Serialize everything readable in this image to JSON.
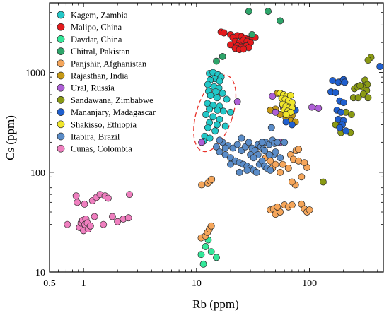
{
  "chart_data": {
    "type": "scatter",
    "xlabel": "Rb (ppm)",
    "ylabel": "Cs (ppm)",
    "xscale": "log",
    "yscale": "log",
    "xlim": [
      0.5,
      450
    ],
    "ylim": [
      10,
      5000
    ],
    "x_ticks": [
      {
        "value": 0.5,
        "label": "0.5"
      },
      {
        "value": 1,
        "label": "1"
      },
      {
        "value": 10,
        "label": "10"
      },
      {
        "value": 100,
        "label": "100"
      }
    ],
    "y_ticks": [
      {
        "value": 10,
        "label": "10"
      },
      {
        "value": 100,
        "label": "100"
      },
      {
        "value": 1000,
        "label": "1000"
      }
    ],
    "legend_position": "top-left",
    "grid": false,
    "annotations": [
      {
        "type": "dashed-ellipse",
        "color": "#e8322a",
        "center": [
          14.5,
          390
        ],
        "rx_range": [
          10.8,
          22.5
        ],
        "ry_range": [
          175,
          1100
        ]
      }
    ],
    "series": [
      {
        "name": "Kagem, Zambia",
        "color": "#22c8c8",
        "points": [
          [
            13,
            980
          ],
          [
            14,
            1000
          ],
          [
            15.5,
            950
          ],
          [
            16.5,
            900
          ],
          [
            14.5,
            870
          ],
          [
            13.2,
            840
          ],
          [
            16,
            820
          ],
          [
            12.6,
            760
          ],
          [
            14.3,
            720
          ],
          [
            15.8,
            700
          ],
          [
            12.8,
            650
          ],
          [
            14.8,
            640
          ],
          [
            17,
            620
          ],
          [
            13.3,
            590
          ],
          [
            15.2,
            560
          ],
          [
            18.5,
            540
          ],
          [
            12.5,
            490
          ],
          [
            14,
            470
          ],
          [
            16,
            460
          ],
          [
            13,
            430
          ],
          [
            15.3,
            420
          ],
          [
            17.3,
            410
          ],
          [
            20,
            400
          ],
          [
            12.1,
            380
          ],
          [
            14,
            360
          ],
          [
            16,
            340
          ],
          [
            13,
            315
          ],
          [
            15.2,
            300
          ],
          [
            18,
            290
          ],
          [
            12.6,
            280
          ],
          [
            14.6,
            260
          ],
          [
            11.8,
            230
          ],
          [
            13.1,
            220
          ],
          [
            11.5,
            205
          ]
        ]
      },
      {
        "name": "Malipo, China",
        "color": "#e41a1c",
        "points": [
          [
            16.5,
            2550
          ],
          [
            17.5,
            2500
          ],
          [
            20,
            2400
          ],
          [
            23,
            2350
          ],
          [
            21,
            2250
          ],
          [
            25,
            2300
          ],
          [
            27,
            2200
          ],
          [
            29,
            2150
          ],
          [
            31,
            2300
          ],
          [
            33,
            2250
          ],
          [
            22,
            2050
          ],
          [
            24,
            2000
          ],
          [
            26,
            2100
          ],
          [
            28,
            2050
          ],
          [
            30,
            2000
          ],
          [
            20,
            1900
          ],
          [
            23,
            1850
          ],
          [
            25,
            1800
          ],
          [
            27.5,
            1850
          ],
          [
            29,
            1780
          ],
          [
            22,
            1750
          ],
          [
            24,
            1700
          ],
          [
            26,
            1720
          ]
        ]
      },
      {
        "name": "Davdar, China",
        "color": "#33e89a",
        "points": [
          [
            11,
            15
          ],
          [
            11.5,
            12
          ],
          [
            12,
            18
          ],
          [
            13.5,
            16
          ],
          [
            15,
            14
          ],
          [
            12.7,
            21
          ]
        ]
      },
      {
        "name": "Chitral, Pakistan",
        "color": "#2ea56a",
        "points": [
          [
            29,
            4100
          ],
          [
            43,
            4100
          ],
          [
            55,
            3300
          ],
          [
            31,
            2400
          ],
          [
            17,
            1450
          ],
          [
            15,
            1300
          ]
        ]
      },
      {
        "name": "Panjshir, Afghanistan",
        "color": "#f5a65b",
        "points": [
          [
            11.1,
            75
          ],
          [
            12.6,
            78
          ],
          [
            13.2,
            82
          ],
          [
            13.6,
            85
          ],
          [
            11,
            22
          ],
          [
            12,
            23
          ],
          [
            12.5,
            25
          ],
          [
            13,
            27
          ],
          [
            13.5,
            29
          ],
          [
            41,
            140
          ],
          [
            45,
            130
          ],
          [
            47,
            110
          ],
          [
            50,
            120
          ],
          [
            55,
            100
          ],
          [
            58,
            120
          ],
          [
            65,
            110
          ],
          [
            68,
            150
          ],
          [
            72,
            135
          ],
          [
            76,
            165
          ],
          [
            80,
            170
          ],
          [
            95,
            112
          ],
          [
            80,
            130
          ],
          [
            90,
            125
          ],
          [
            85,
            90
          ],
          [
            75,
            75
          ],
          [
            70,
            80
          ],
          [
            45,
            42
          ],
          [
            48,
            43
          ],
          [
            50,
            38
          ],
          [
            55,
            40
          ],
          [
            60,
            47
          ],
          [
            65,
            45
          ],
          [
            70,
            47
          ],
          [
            85,
            48
          ],
          [
            90,
            43
          ],
          [
            95,
            40
          ],
          [
            100,
            42
          ],
          [
            52,
            45
          ]
        ]
      },
      {
        "name": "Rajasthan, India",
        "color": "#c79a16",
        "points": [
          [
            52,
            620
          ],
          [
            57,
            560
          ],
          [
            65,
            500
          ],
          [
            70,
            460
          ],
          [
            60,
            430
          ],
          [
            64,
            400
          ],
          [
            55,
            380
          ],
          [
            70,
            370
          ],
          [
            62,
            350
          ],
          [
            68,
            330
          ],
          [
            75,
            320
          ],
          [
            50,
            430
          ],
          [
            45,
            420
          ],
          [
            58,
            470
          ]
        ]
      },
      {
        "name": "Ural, Russia",
        "color": "#ae5fd6",
        "points": [
          [
            23,
            510
          ],
          [
            50,
            400
          ],
          [
            59,
            440
          ],
          [
            105,
            450
          ],
          [
            120,
            440
          ],
          [
            47,
            580
          ],
          [
            55,
            200
          ],
          [
            11.1,
            200
          ]
        ]
      },
      {
        "name": "Sandawana, Zimbabwe",
        "color": "#8a9a14",
        "points": [
          [
            132,
            80
          ],
          [
            170,
            300
          ],
          [
            190,
            250
          ],
          [
            210,
            400
          ],
          [
            235,
            380
          ],
          [
            245,
            560
          ],
          [
            270,
            560
          ],
          [
            310,
            840
          ],
          [
            325,
            760
          ],
          [
            350,
            1420
          ],
          [
            330,
            1330
          ],
          [
            295,
            720
          ],
          [
            320,
            660
          ],
          [
            300,
            610
          ],
          [
            330,
            560
          ],
          [
            230,
            250
          ],
          [
            250,
            690
          ],
          [
            265,
            720
          ],
          [
            280,
            740
          ]
        ]
      },
      {
        "name": "Mananjary, Madagascar",
        "color": "#1f5fcf",
        "points": [
          [
            160,
            830
          ],
          [
            180,
            800
          ],
          [
            195,
            820
          ],
          [
            200,
            850
          ],
          [
            205,
            800
          ],
          [
            155,
            640
          ],
          [
            170,
            630
          ],
          [
            185,
            520
          ],
          [
            200,
            500
          ],
          [
            175,
            420
          ],
          [
            190,
            400
          ],
          [
            180,
            340
          ],
          [
            200,
            330
          ],
          [
            195,
            300
          ],
          [
            185,
            280
          ],
          [
            210,
            260
          ],
          [
            420,
            1150
          ],
          [
            62,
            320
          ],
          [
            70,
            300
          ],
          [
            75,
            420
          ]
        ]
      },
      {
        "name": "Shakisso, Ethiopia",
        "color": "#f0e62a",
        "points": [
          [
            55,
            620
          ],
          [
            59,
            600
          ],
          [
            63,
            580
          ],
          [
            68,
            590
          ],
          [
            57,
            550
          ],
          [
            61,
            540
          ],
          [
            65,
            520
          ],
          [
            70,
            500
          ],
          [
            58,
            480
          ],
          [
            62,
            460
          ],
          [
            66,
            450
          ],
          [
            70,
            440
          ],
          [
            60,
            420
          ],
          [
            64,
            410
          ],
          [
            68,
            400
          ],
          [
            62,
            380
          ]
        ]
      },
      {
        "name": "Itabira, Brazil",
        "color": "#5a8cc8",
        "points": [
          [
            17,
            200
          ],
          [
            19,
            185
          ],
          [
            21,
            175
          ],
          [
            23,
            190
          ],
          [
            25,
            165
          ],
          [
            27,
            180
          ],
          [
            29,
            200
          ],
          [
            31,
            175
          ],
          [
            33,
            165
          ],
          [
            35,
            190
          ],
          [
            37,
            180
          ],
          [
            39,
            170
          ],
          [
            41,
            200
          ],
          [
            44,
            190
          ],
          [
            47,
            210
          ],
          [
            49,
            195
          ],
          [
            52,
            200
          ],
          [
            15,
            180
          ],
          [
            16,
            160
          ],
          [
            18,
            150
          ],
          [
            20,
            140
          ],
          [
            22,
            130
          ],
          [
            24,
            125
          ],
          [
            26,
            120
          ],
          [
            28,
            115
          ],
          [
            30,
            110
          ],
          [
            32,
            105
          ],
          [
            34,
            100
          ],
          [
            36,
            120
          ],
          [
            38,
            130
          ],
          [
            40,
            115
          ],
          [
            42,
            110
          ],
          [
            45,
            105
          ],
          [
            48,
            150
          ],
          [
            50,
            160
          ],
          [
            24,
            100
          ],
          [
            28,
            105
          ],
          [
            20,
            120
          ],
          [
            18,
            175
          ],
          [
            30,
            150
          ],
          [
            35,
            150
          ],
          [
            44,
            150
          ],
          [
            55,
            140
          ],
          [
            60,
            200
          ],
          [
            46,
            280
          ],
          [
            16,
            210
          ],
          [
            38,
            200
          ],
          [
            25,
            220
          ],
          [
            32,
            140
          ],
          [
            40,
            165
          ]
        ]
      },
      {
        "name": "Cunas, Colombia",
        "color": "#ef7fbf",
        "points": [
          [
            0.86,
            58
          ],
          [
            0.88,
            50
          ],
          [
            1.02,
            48
          ],
          [
            1.2,
            52
          ],
          [
            1.3,
            56
          ],
          [
            1.4,
            60
          ],
          [
            1.55,
            58
          ],
          [
            1.65,
            55
          ],
          [
            2.55,
            60
          ],
          [
            0.72,
            30
          ],
          [
            0.92,
            28
          ],
          [
            0.95,
            31
          ],
          [
            0.98,
            33
          ],
          [
            1.0,
            26
          ],
          [
            1.03,
            30
          ],
          [
            1.05,
            34
          ],
          [
            1.08,
            31
          ],
          [
            1.1,
            27
          ],
          [
            1.15,
            29
          ],
          [
            1.25,
            36
          ],
          [
            1.5,
            30
          ],
          [
            1.8,
            36
          ],
          [
            2.0,
            32
          ],
          [
            2.25,
            34
          ],
          [
            2.5,
            35
          ]
        ]
      }
    ]
  }
}
